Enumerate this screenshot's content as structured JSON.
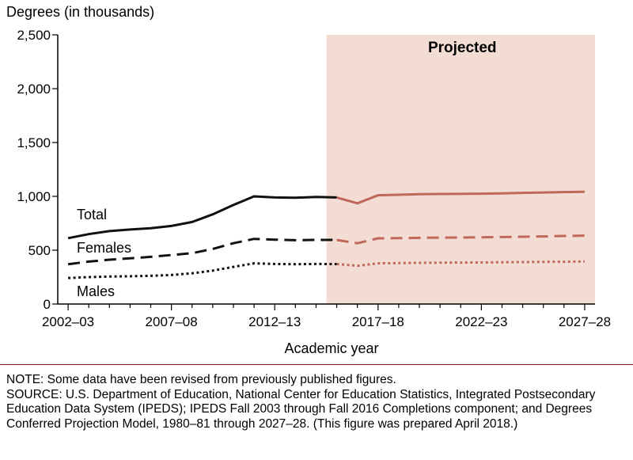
{
  "chart_data": {
    "type": "line",
    "ylabel": "Degrees (in thousands)",
    "xlabel": "Academic year",
    "y_ticks": [
      "0",
      "500",
      "1,000",
      "1,500",
      "2,000",
      "2,500"
    ],
    "ylim": [
      0,
      2500
    ],
    "x_ticks": [
      "2002–03",
      "2007–08",
      "2012–13",
      "2017–18",
      "2022–23",
      "2027–28"
    ],
    "categories": [
      "2002–03",
      "2003–04",
      "2004–05",
      "2005–06",
      "2006–07",
      "2007–08",
      "2008–09",
      "2009–10",
      "2010–11",
      "2011–12",
      "2012–13",
      "2013–14",
      "2014–15",
      "2015–16",
      "2016–17",
      "2017–18",
      "2018–19",
      "2019–20",
      "2020–21",
      "2021–22",
      "2022–23",
      "2023–24",
      "2024–25",
      "2025–26",
      "2026–27",
      "2027–28"
    ],
    "projected_label": "Projected",
    "projected_start": "2015–16",
    "projected_end": "2027–28",
    "series": [
      {
        "name": "Total",
        "style": "solid",
        "values": [
          612,
          649,
          677,
          692,
          704,
          725,
          762,
          833,
          920,
          1000,
          990,
          987,
          995,
          990,
          935,
          1010,
          1015,
          1020,
          1022,
          1023,
          1025,
          1028,
          1032,
          1036,
          1040,
          1043
        ]
      },
      {
        "name": "Females",
        "style": "dashed",
        "values": [
          370,
          394,
          412,
          424,
          438,
          455,
          472,
          512,
          565,
          605,
          598,
          593,
          596,
          595,
          565,
          610,
          612,
          615,
          617,
          618,
          620,
          622,
          625,
          628,
          632,
          635
        ]
      },
      {
        "name": "Males",
        "style": "dotted",
        "values": [
          242,
          250,
          255,
          258,
          262,
          270,
          285,
          310,
          345,
          378,
          372,
          370,
          372,
          371,
          355,
          378,
          380,
          382,
          384,
          385,
          386,
          388,
          390,
          392,
          393,
          395
        ]
      }
    ],
    "colors": {
      "historical": "#111111",
      "projected": "#c0675a",
      "shade": "#f3dcd3",
      "axis": "#000000"
    }
  },
  "notes": {
    "note": "NOTE: Some data have been revised from previously published figures.",
    "source": "SOURCE: U.S. Department of Education, National Center for Education Statistics, Integrated Postsecondary Education Data System (IPEDS); IPEDS Fall 2003 through Fall 2016 Completions component; and Degrees Conferred Projection Model, 1980–81 through 2027–28. (This figure was prepared April 2018.)"
  }
}
